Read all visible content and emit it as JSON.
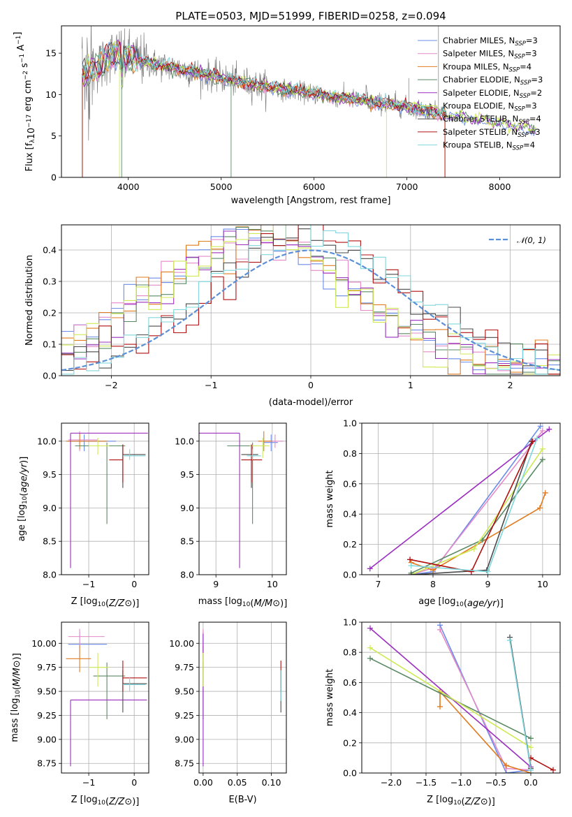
{
  "title": "PLATE=0503, MJD=51999, FIBERID=0258, z=0.094",
  "colors": {
    "Chabrier MILES": "#6b8ce8",
    "Salpeter MILES": "#e489c9",
    "Kroupa MILES": "#e07b1f",
    "Chabrier ELODIE": "#5a8a64",
    "Salpeter ELODIE": "#9b2fbf",
    "Kroupa ELODIE": "#cdea55",
    "Chabrier STELIB": "#4a4a4a",
    "Salpeter STELIB": "#b01010",
    "Kroupa STELIB": "#7fd6dc",
    "data": "#808080",
    "normal": "#5b8fd6"
  },
  "chart_data": [
    {
      "id": "spectrum",
      "type": "line",
      "title": "PLATE=0503, MJD=51999, FIBERID=0258, z=0.094",
      "xlabel": "wavelength [Angstrom, rest frame]",
      "ylabel": "Flux [f_λ10^-17 erg cm^-2 s^-1 A^-1]",
      "xlim": [
        3280,
        8650
      ],
      "ylim": [
        0,
        18.3
      ],
      "xticks": [
        "4000",
        "5000",
        "6000",
        "7000",
        "8000"
      ],
      "yticks": [
        "0",
        "5",
        "10",
        "15"
      ],
      "legend_position": "top-right",
      "legend": [
        {
          "name": "Chabrier MILES",
          "nssp": "3"
        },
        {
          "name": "Salpeter MILES",
          "nssp": "3"
        },
        {
          "name": "Kroupa MILES",
          "nssp": "4"
        },
        {
          "name": "Chabrier ELODIE",
          "nssp": "3"
        },
        {
          "name": "Salpeter ELODIE",
          "nssp": "2"
        },
        {
          "name": "Kroupa ELODIE",
          "nssp": "3"
        },
        {
          "name": "Chabrier STELIB",
          "nssp": "4"
        },
        {
          "name": "Salpeter STELIB",
          "nssp": "3"
        },
        {
          "name": "Kroupa STELIB",
          "nssp": "4"
        }
      ],
      "continuum": {
        "x": [
          3500,
          3700,
          3800,
          3900,
          4000,
          4200,
          4500,
          5000,
          5500,
          6000,
          6500,
          7000,
          7500,
          8000,
          8400
        ],
        "y": [
          12.5,
          13.5,
          14.7,
          15.0,
          14.6,
          13.9,
          13.2,
          12.0,
          10.9,
          10.1,
          9.3,
          8.5,
          7.5,
          6.6,
          5.8
        ]
      },
      "gaps": [
        {
          "series": "Salpeter STELIB",
          "x": [
            3505,
            7410
          ]
        },
        {
          "series": "Kroupa MILES",
          "x": [
            3505,
            7410
          ]
        },
        {
          "series": "Kroupa ELODIE",
          "x": [
            3905,
            6780
          ]
        },
        {
          "series": "Chabrier ELODIE",
          "x": [
            3928,
            5107
          ]
        }
      ]
    },
    {
      "id": "residuals",
      "type": "line",
      "xlabel": "(data-model)/error",
      "ylabel": "Normed distribution",
      "xlim": [
        -2.5,
        2.5
      ],
      "ylim": [
        0,
        0.48
      ],
      "xticks": [
        "−2",
        "−1",
        "0",
        "1",
        "2"
      ],
      "yticks": [
        "0.0",
        "0.1",
        "0.2",
        "0.3",
        "0.4"
      ],
      "legend_position": "top-right",
      "normal_label": "𝒩(0, 1)",
      "bins": 40,
      "series_shift": [
        {
          "name": "Chabrier MILES",
          "mu": -0.62,
          "sigma": 1.0
        },
        {
          "name": "Salpeter MILES",
          "mu": -0.58,
          "sigma": 1.0
        },
        {
          "name": "Kroupa MILES",
          "mu": -0.6,
          "sigma": 1.0
        },
        {
          "name": "Chabrier ELODIE",
          "mu": -0.52,
          "sigma": 0.95
        },
        {
          "name": "Salpeter ELODIE",
          "mu": -0.5,
          "sigma": 0.95
        },
        {
          "name": "Kroupa ELODIE",
          "mu": -0.55,
          "sigma": 0.98
        },
        {
          "name": "Chabrier STELIB",
          "mu": -0.05,
          "sigma": 0.95
        },
        {
          "name": "Salpeter STELIB",
          "mu": 0.0,
          "sigma": 0.95
        },
        {
          "name": "Kroupa STELIB",
          "mu": -0.02,
          "sigma": 0.95
        }
      ]
    },
    {
      "id": "age_vs_Z",
      "type": "scatter",
      "xlabel": "Z [log10(Z/Z⊙)]",
      "ylabel": "age  [log10(age/yr)]",
      "xlim": [
        -1.6,
        0.32
      ],
      "ylim": [
        8.0,
        10.27
      ],
      "xticks": [
        "−1",
        "0"
      ],
      "yticks": [
        "8.0",
        "8.5",
        "9.0",
        "9.5",
        "10.0"
      ],
      "points": [
        {
          "s": "Chabrier MILES",
          "x": -1.1,
          "y": 10.0,
          "xe": [
            -1.45,
            -0.4
          ],
          "ye": [
            9.85,
            10.1
          ]
        },
        {
          "s": "Salpeter MILES",
          "x": -1.2,
          "y": 10.02,
          "xe": [
            -1.45,
            -0.8
          ],
          "ye": [
            9.85,
            10.15
          ]
        },
        {
          "s": "Kroupa MILES",
          "x": -1.2,
          "y": 10.0,
          "xe": [
            -1.5,
            -0.6
          ],
          "ye": [
            9.88,
            10.12
          ]
        },
        {
          "s": "Chabrier ELODIE",
          "x": -0.6,
          "y": 9.93,
          "xe": [
            -1.3,
            -0.2
          ],
          "ye": [
            8.76,
            9.98
          ]
        },
        {
          "s": "Salpeter ELODIE",
          "x": -1.4,
          "y": 10.12,
          "xe": [
            -1.4,
            0.3
          ],
          "ye": [
            8.1,
            10.12
          ]
        },
        {
          "s": "Kroupa ELODIE",
          "x": -0.8,
          "y": 9.93,
          "xe": [
            -1.0,
            -0.55
          ],
          "ye": [
            9.8,
            10.05
          ]
        },
        {
          "s": "Chabrier STELIB",
          "x": -0.25,
          "y": 9.8,
          "xe": [
            -0.25,
            0.25
          ],
          "ye": [
            9.3,
            9.95
          ]
        },
        {
          "s": "Salpeter STELIB",
          "x": -0.25,
          "y": 9.72,
          "xe": [
            -0.55,
            -0.25
          ],
          "ye": [
            9.38,
            9.95
          ]
        },
        {
          "s": "Kroupa STELIB",
          "x": -0.1,
          "y": 9.78,
          "xe": [
            -0.25,
            0.25
          ],
          "ye": [
            9.72,
            9.88
          ]
        }
      ]
    },
    {
      "id": "age_vs_mass",
      "type": "scatter",
      "xlabel": "mass [log10(M/M⊙)]",
      "ylabel": "",
      "xlim": [
        8.7,
        10.25
      ],
      "ylim": [
        8.0,
        10.27
      ],
      "xticks": [
        "9",
        "10"
      ],
      "yticks": [
        "8.0",
        "8.5",
        "9.0",
        "9.5",
        "10.0"
      ],
      "points": [
        {
          "s": "Chabrier MILES",
          "x": 9.98,
          "y": 9.98,
          "xe": [
            9.85,
            10.1
          ],
          "ye": [
            9.85,
            10.1
          ]
        },
        {
          "s": "Salpeter MILES",
          "x": 10.05,
          "y": 10.0,
          "xe": [
            9.85,
            10.2
          ],
          "ye": [
            9.9,
            10.1
          ]
        },
        {
          "s": "Kroupa MILES",
          "x": 9.85,
          "y": 10.0,
          "xe": [
            9.75,
            10.0
          ],
          "ye": [
            9.85,
            10.15
          ]
        },
        {
          "s": "Chabrier ELODIE",
          "x": 9.65,
          "y": 9.93,
          "xe": [
            9.2,
            9.72
          ],
          "ye": [
            8.76,
            9.98
          ]
        },
        {
          "s": "Salpeter ELODIE",
          "x": 9.42,
          "y": 10.12,
          "xe": [
            8.7,
            9.42
          ],
          "ye": [
            8.1,
            10.12
          ]
        },
        {
          "s": "Kroupa ELODIE",
          "x": 9.83,
          "y": 9.93,
          "xe": [
            9.6,
            9.95
          ],
          "ye": [
            9.75,
            10.05
          ]
        },
        {
          "s": "Chabrier STELIB",
          "x": 9.63,
          "y": 9.8,
          "xe": [
            9.45,
            9.75
          ],
          "ye": [
            9.3,
            9.95
          ]
        },
        {
          "s": "Salpeter STELIB",
          "x": 9.63,
          "y": 9.72,
          "xe": [
            9.45,
            9.82
          ],
          "ye": [
            9.38,
            9.95
          ]
        },
        {
          "s": "Kroupa STELIB",
          "x": 9.65,
          "y": 9.78,
          "xe": [
            9.55,
            9.8
          ],
          "ye": [
            9.72,
            9.88
          ]
        }
      ]
    },
    {
      "id": "weight_vs_age",
      "type": "line",
      "xlabel": "age  [log10(age/yr)]",
      "ylabel": "mass weight",
      "xlim": [
        6.7,
        10.32
      ],
      "ylim": [
        0,
        1.0
      ],
      "xticks": [
        "7",
        "8",
        "9",
        "10"
      ],
      "yticks": [
        "0.0",
        "0.2",
        "0.4",
        "0.6",
        "0.8",
        "1.0"
      ],
      "series": [
        {
          "name": "Chabrier MILES",
          "x": [
            7.6,
            8.0,
            9.96
          ],
          "y": [
            0.0,
            0.02,
            0.98
          ]
        },
        {
          "name": "Salpeter MILES",
          "x": [
            7.6,
            8.05,
            10.0
          ],
          "y": [
            0.0,
            0.05,
            0.95
          ]
        },
        {
          "name": "Kroupa MILES",
          "x": [
            7.6,
            8.0,
            9.95,
            10.05
          ],
          "y": [
            0.08,
            0.03,
            0.44,
            0.54
          ]
        },
        {
          "name": "Chabrier ELODIE",
          "x": [
            7.6,
            8.9,
            10.0
          ],
          "y": [
            0.01,
            0.23,
            0.76
          ]
        },
        {
          "name": "Salpeter ELODIE",
          "x": [
            6.85,
            10.12
          ],
          "y": [
            0.04,
            0.96
          ]
        },
        {
          "name": "Kroupa ELODIE",
          "x": [
            7.6,
            8.75,
            10.0
          ],
          "y": [
            0.0,
            0.17,
            0.83
          ]
        },
        {
          "name": "Chabrier STELIB",
          "x": [
            7.6,
            8.98,
            9.8
          ],
          "y": [
            0.0,
            0.03,
            0.88
          ]
        },
        {
          "name": "Salpeter STELIB",
          "x": [
            7.58,
            8.7,
            9.82
          ],
          "y": [
            0.1,
            0.02,
            0.88
          ]
        },
        {
          "name": "Kroupa STELIB",
          "x": [
            7.6,
            9.0,
            9.9
          ],
          "y": [
            0.06,
            0.02,
            0.9
          ]
        }
      ]
    },
    {
      "id": "mass_vs_Z",
      "type": "scatter",
      "xlabel": "Z [log10(Z/Z⊙)]",
      "ylabel": "mass [log10(M/M⊙)]",
      "xlim": [
        -1.6,
        0.32
      ],
      "ylim": [
        8.65,
        10.22
      ],
      "xticks": [
        "−1",
        "0"
      ],
      "yticks": [
        "8.75",
        "9.00",
        "9.25",
        "9.50",
        "9.75",
        "10.00"
      ],
      "points": [
        {
          "s": "Chabrier MILES",
          "x": -1.2,
          "y": 9.99,
          "xe": [
            -1.45,
            -0.6
          ],
          "ye": [
            9.85,
            10.12
          ]
        },
        {
          "s": "Salpeter MILES",
          "x": -1.2,
          "y": 10.07,
          "xe": [
            -1.45,
            -0.65
          ],
          "ye": [
            9.95,
            10.15
          ]
        },
        {
          "s": "Kroupa MILES",
          "x": -1.2,
          "y": 9.84,
          "xe": [
            -1.5,
            -0.95
          ],
          "ye": [
            9.7,
            9.98
          ]
        },
        {
          "s": "Chabrier ELODIE",
          "x": -0.6,
          "y": 9.66,
          "xe": [
            -0.9,
            -0.2
          ],
          "ye": [
            9.21,
            9.8
          ]
        },
        {
          "s": "Salpeter ELODIE",
          "x": -1.4,
          "y": 9.41,
          "xe": [
            -1.4,
            0.28
          ],
          "ye": [
            8.72,
            9.41
          ]
        },
        {
          "s": "Kroupa ELODIE",
          "x": -0.8,
          "y": 9.75,
          "xe": [
            -1.0,
            -0.55
          ],
          "ye": [
            9.55,
            9.9
          ]
        },
        {
          "s": "Chabrier STELIB",
          "x": -0.25,
          "y": 9.58,
          "xe": [
            -0.25,
            0.28
          ],
          "ye": [
            9.28,
            9.72
          ]
        },
        {
          "s": "Salpeter STELIB",
          "x": -0.25,
          "y": 9.64,
          "xe": [
            -0.25,
            0.28
          ],
          "ye": [
            9.5,
            9.82
          ]
        },
        {
          "s": "Kroupa STELIB",
          "x": -0.1,
          "y": 9.57,
          "xe": [
            -0.25,
            0.25
          ],
          "ye": [
            9.5,
            9.65
          ]
        }
      ]
    },
    {
      "id": "mass_vs_ebv",
      "type": "scatter",
      "xlabel": "E(B-V)",
      "ylabel": "",
      "xlim": [
        -0.006,
        0.122
      ],
      "ylim": [
        8.65,
        10.22
      ],
      "xticks": [
        "0.00",
        "0.05",
        "0.10"
      ],
      "yticks": [
        "8.75",
        "9.00",
        "9.25",
        "9.50",
        "9.75",
        "10.00"
      ],
      "points": [
        {
          "s": "Chabrier MILES",
          "x": 0.0,
          "y": 9.99,
          "ye": [
            9.85,
            10.12
          ]
        },
        {
          "s": "Salpeter MILES",
          "x": 0.0,
          "y": 10.07,
          "ye": [
            9.95,
            10.15
          ]
        },
        {
          "s": "Kroupa MILES",
          "x": 0.0,
          "y": 9.84,
          "ye": [
            9.7,
            9.98
          ]
        },
        {
          "s": "Chabrier ELODIE",
          "x": 0.0,
          "y": 9.66,
          "ye": [
            9.21,
            9.8
          ]
        },
        {
          "s": "Salpeter ELODIE",
          "x": 0.0,
          "y": 9.41,
          "ye": [
            8.72,
            10.1
          ]
        },
        {
          "s": "Kroupa ELODIE",
          "x": 0.0,
          "y": 9.75,
          "ye": [
            9.55,
            9.9
          ]
        },
        {
          "s": "Chabrier STELIB",
          "x": 0.114,
          "y": 9.58,
          "ye": [
            9.28,
            9.72
          ]
        },
        {
          "s": "Salpeter STELIB",
          "x": 0.114,
          "y": 9.64,
          "ye": [
            9.5,
            9.82
          ]
        },
        {
          "s": "Kroupa STELIB",
          "x": 0.114,
          "y": 9.57,
          "ye": [
            9.4,
            9.72
          ]
        }
      ]
    },
    {
      "id": "weight_vs_Z",
      "type": "line",
      "xlabel": "Z [log10(Z/Z⊙)]",
      "ylabel": "mass weight",
      "xlim": [
        -2.42,
        0.42
      ],
      "ylim": [
        0,
        1.0
      ],
      "xticks": [
        "−2.0",
        "−1.5",
        "−1.0",
        "−0.5",
        "0.0"
      ],
      "yticks": [
        "0.0",
        "0.2",
        "0.4",
        "0.6",
        "0.8",
        "1.0"
      ],
      "series": [
        {
          "name": "Chabrier MILES",
          "x": [
            -1.3,
            -0.35,
            0.0
          ],
          "y": [
            0.98,
            0.0,
            0.02
          ]
        },
        {
          "name": "Salpeter MILES",
          "x": [
            -1.3,
            -0.35,
            0.0
          ],
          "y": [
            0.95,
            0.03,
            0.02
          ]
        },
        {
          "name": "Kroupa MILES",
          "x": [
            -1.3,
            -1.3,
            -0.35,
            0.0
          ],
          "y": [
            0.44,
            0.54,
            0.05,
            0.0
          ]
        },
        {
          "name": "Chabrier ELODIE",
          "x": [
            -2.3,
            0.0
          ],
          "y": [
            0.76,
            0.23
          ]
        },
        {
          "name": "Salpeter ELODIE",
          "x": [
            -2.3,
            0.0
          ],
          "y": [
            0.96,
            0.04
          ]
        },
        {
          "name": "Kroupa ELODIE",
          "x": [
            -2.3,
            0.0
          ],
          "y": [
            0.83,
            0.17
          ]
        },
        {
          "name": "Chabrier STELIB",
          "x": [
            -0.3,
            0.0
          ],
          "y": [
            0.9,
            0.03
          ]
        },
        {
          "name": "Salpeter STELIB",
          "x": [
            0.0,
            0.32
          ],
          "y": [
            0.1,
            0.02
          ]
        },
        {
          "name": "Kroupa STELIB",
          "x": [
            -0.3,
            0.0
          ],
          "y": [
            0.88,
            0.02
          ]
        }
      ]
    }
  ]
}
